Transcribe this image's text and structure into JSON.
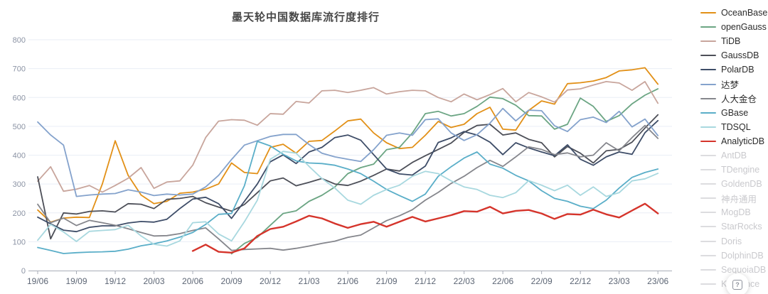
{
  "title": "墨天轮中国数据库流行度排行",
  "help_button": {
    "label": "?"
  },
  "axis": {
    "y_tick_labels": [
      "0",
      "100",
      "200",
      "300",
      "400",
      "500",
      "600",
      "700",
      "800"
    ],
    "x_tick_labels": [
      "19/06",
      "19/09",
      "19/12",
      "20/03",
      "20/06",
      "20/09",
      "20/12",
      "21/03",
      "21/06",
      "21/09",
      "21/12",
      "22/03",
      "22/06",
      "22/09",
      "22/12",
      "23/03",
      "23/06"
    ]
  },
  "legend": {
    "active_text_color": "#2b2b2b",
    "inactive_text_color": "#c9c9cd",
    "inactive_line_color": "#dcdcdf",
    "items": [
      {
        "label": "OceanBase",
        "color": "#E29017",
        "active": true
      },
      {
        "label": "openGauss",
        "color": "#6BA583",
        "active": true
      },
      {
        "label": "TiDB",
        "color": "#C8A59C",
        "active": true
      },
      {
        "label": "GaussDB",
        "color": "#4D4F58",
        "active": true
      },
      {
        "label": "PolarDB",
        "color": "#3E4D68",
        "active": true
      },
      {
        "label": "达梦",
        "color": "#84A2CC",
        "active": true
      },
      {
        "label": "人大金仓",
        "color": "#85868C",
        "active": true
      },
      {
        "label": "GBase",
        "color": "#5AAEC8",
        "active": true
      },
      {
        "label": "TDSQL",
        "color": "#A8D8DF",
        "active": true
      },
      {
        "label": "AnalyticDB",
        "color": "#D5342B",
        "active": true
      },
      {
        "label": "AntDB",
        "color": "#dcdcdf",
        "active": false
      },
      {
        "label": "TDengine",
        "color": "#dcdcdf",
        "active": false
      },
      {
        "label": "GoldenDB",
        "color": "#dcdcdf",
        "active": false
      },
      {
        "label": "神舟通用",
        "color": "#dcdcdf",
        "active": false
      },
      {
        "label": "MogDB",
        "color": "#dcdcdf",
        "active": false
      },
      {
        "label": "StarRocks",
        "color": "#dcdcdf",
        "active": false
      },
      {
        "label": "Doris",
        "color": "#dcdcdf",
        "active": false
      },
      {
        "label": "DolphinDB",
        "color": "#dcdcdf",
        "active": false
      },
      {
        "label": "SequoiaDB",
        "color": "#dcdcdf",
        "active": false
      },
      {
        "label": "Kyligence",
        "color": "#dcdcdf",
        "active": false
      }
    ]
  },
  "chart_data": {
    "type": "line",
    "title": "墨天轮中国数据库流行度排行",
    "xlabel": "",
    "ylabel": "",
    "ylim": [
      0,
      800
    ],
    "y_tick_step": 100,
    "grid": true,
    "legend_position": "right",
    "x": [
      "19/06",
      "19/07",
      "19/08",
      "19/09",
      "19/10",
      "19/11",
      "19/12",
      "20/01",
      "20/02",
      "20/03",
      "20/04",
      "20/05",
      "20/06",
      "20/07",
      "20/08",
      "20/09",
      "20/10",
      "20/11",
      "20/12",
      "21/01",
      "21/02",
      "21/03",
      "21/04",
      "21/05",
      "21/06",
      "21/07",
      "21/08",
      "21/09",
      "21/10",
      "21/11",
      "21/12",
      "22/01",
      "22/02",
      "22/03",
      "22/04",
      "22/05",
      "22/06",
      "22/07",
      "22/08",
      "22/09",
      "22/10",
      "22/11",
      "22/12",
      "23/01",
      "23/02",
      "23/03",
      "23/04",
      "23/05",
      "23/06"
    ],
    "x_tick_every": 3,
    "series": [
      {
        "name": "OceanBase",
        "color": "#E29017",
        "width": 1.8,
        "values": [
          210,
          168,
          182,
          185,
          184,
          300,
          450,
          330,
          262,
          232,
          240,
          268,
          272,
          282,
          300,
          373,
          340,
          336,
          427,
          438,
          407,
          448,
          451,
          484,
          519,
          525,
          477,
          443,
          423,
          427,
          469,
          517,
          496,
          507,
          544,
          566,
          490,
          487,
          555,
          588,
          577,
          648,
          651,
          657,
          669,
          692,
          696,
          703,
          646
        ]
      },
      {
        "name": "openGauss",
        "color": "#6BA583",
        "width": 1.8,
        "values": [
          null,
          null,
          null,
          null,
          null,
          null,
          null,
          null,
          null,
          null,
          null,
          null,
          null,
          null,
          null,
          58,
          94,
          115,
          157,
          198,
          207,
          240,
          261,
          290,
          336,
          357,
          369,
          419,
          427,
          477,
          544,
          552,
          536,
          544,
          569,
          601,
          596,
          573,
          537,
          536,
          490,
          507,
          598,
          569,
          517,
          537,
          578,
          608,
          630
        ]
      },
      {
        "name": "TiDB",
        "color": "#C8A59C",
        "width": 1.8,
        "values": [
          310,
          360,
          275,
          282,
          295,
          272,
          295,
          320,
          357,
          285,
          307,
          311,
          365,
          461,
          518,
          523,
          521,
          504,
          544,
          542,
          586,
          581,
          623,
          625,
          617,
          625,
          634,
          612,
          620,
          625,
          623,
          600,
          585,
          612,
          592,
          610,
          631,
          585,
          617,
          602,
          584,
          626,
          630,
          643,
          655,
          650,
          625,
          655,
          580
        ]
      },
      {
        "name": "GaussDB",
        "color": "#4D4F58",
        "width": 1.8,
        "values": [
          325,
          110,
          200,
          196,
          205,
          207,
          203,
          232,
          230,
          215,
          247,
          250,
          257,
          235,
          220,
          206,
          229,
          270,
          311,
          321,
          294,
          306,
          319,
          300,
          295,
          310,
          330,
          352,
          345,
          375,
          398,
          420,
          442,
          479,
          503,
          507,
          470,
          477,
          455,
          443,
          394,
          430,
          407,
          373,
          415,
          420,
          445,
          494,
          540
        ]
      },
      {
        "name": "PolarDB",
        "color": "#3E4D68",
        "width": 1.8,
        "values": [
          185,
          162,
          140,
          135,
          150,
          155,
          155,
          165,
          170,
          168,
          178,
          215,
          248,
          254,
          232,
          181,
          240,
          300,
          377,
          401,
          371,
          411,
          427,
          461,
          470,
          452,
          402,
          352,
          335,
          331,
          362,
          444,
          460,
          482,
          470,
          445,
          402,
          443,
          425,
          411,
          398,
          436,
          386,
          365,
          394,
          411,
          403,
          478,
          520
        ]
      },
      {
        "name": "达梦",
        "color": "#84A2CC",
        "width": 1.8,
        "values": [
          515,
          470,
          435,
          257,
          262,
          265,
          267,
          280,
          272,
          260,
          265,
          262,
          265,
          290,
          330,
          385,
          435,
          450,
          465,
          472,
          472,
          437,
          407,
          394,
          386,
          378,
          419,
          469,
          477,
          469,
          523,
          526,
          477,
          451,
          471,
          511,
          562,
          519,
          556,
          554,
          502,
          482,
          523,
          532,
          513,
          552,
          498,
          525,
          468
        ]
      },
      {
        "name": "人大金仓",
        "color": "#85868C",
        "width": 1.8,
        "values": [
          230,
          166,
          182,
          156,
          174,
          166,
          157,
          145,
          132,
          120,
          121,
          128,
          139,
          148,
          110,
          70,
          73,
          75,
          77,
          71,
          77,
          85,
          94,
          102,
          115,
          123,
          148,
          173,
          190,
          211,
          244,
          271,
          302,
          327,
          357,
          382,
          361,
          394,
          429,
          420,
          402,
          408,
          394,
          400,
          443,
          415,
          461,
          503,
          458
        ]
      },
      {
        "name": "GBase",
        "color": "#5AAEC8",
        "width": 1.8,
        "values": [
          80,
          70,
          59,
          62,
          64,
          65,
          67,
          74,
          86,
          93,
          103,
          116,
          132,
          160,
          195,
          198,
          294,
          448,
          432,
          403,
          380,
          373,
          371,
          365,
          352,
          336,
          310,
          281,
          260,
          240,
          265,
          327,
          360,
          390,
          411,
          369,
          355,
          330,
          311,
          277,
          250,
          240,
          223,
          215,
          244,
          286,
          323,
          340,
          352
        ]
      },
      {
        "name": "TDSQL",
        "color": "#A8D8DF",
        "width": 1.8,
        "values": [
          105,
          160,
          134,
          101,
          136,
          139,
          142,
          157,
          120,
          91,
          85,
          103,
          166,
          169,
          127,
          103,
          169,
          244,
          386,
          413,
          407,
          361,
          319,
          286,
          244,
          230,
          261,
          281,
          296,
          327,
          344,
          336,
          311,
          290,
          281,
          261,
          253,
          270,
          312,
          296,
          277,
          296,
          261,
          290,
          257,
          270,
          311,
          318,
          337
        ]
      },
      {
        "name": "AnalyticDB",
        "color": "#D5342B",
        "width": 2.4,
        "values": [
          null,
          null,
          null,
          null,
          null,
          null,
          null,
          null,
          null,
          null,
          null,
          null,
          68,
          90,
          65,
          62,
          77,
          120,
          144,
          152,
          170,
          190,
          181,
          163,
          148,
          161,
          169,
          152,
          169,
          186,
          170,
          181,
          192,
          206,
          204,
          221,
          198,
          207,
          210,
          198,
          179,
          196,
          194,
          211,
          195,
          184,
          208,
          232,
          198
        ]
      }
    ]
  }
}
